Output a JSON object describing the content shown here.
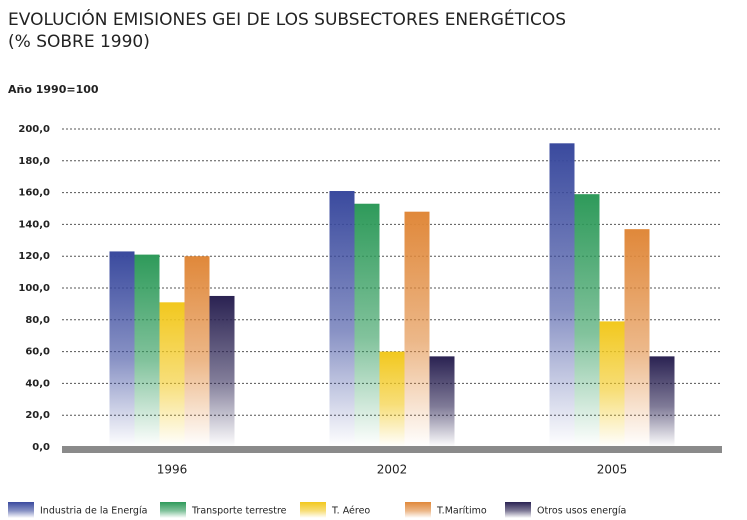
{
  "chart_data": {
    "type": "bar",
    "title": "EVOLUCIÓN EMISIONES GEI DE LOS SUBSECTORES ENERGÉTICOS",
    "subtitle": "(% SOBRE 1990)",
    "y_label": "Año 1990=100",
    "categories": [
      "1996",
      "2002",
      "2005"
    ],
    "series": [
      {
        "name": "Industria de la Energía",
        "color": "#3a4a9e",
        "values": [
          123,
          161,
          191
        ]
      },
      {
        "name": "Transporte terrestre",
        "color": "#2e9a5a",
        "values": [
          121,
          153,
          159
        ]
      },
      {
        "name": "T. Aéreo",
        "color": "#f2c81e",
        "values": [
          91,
          60,
          79
        ]
      },
      {
        "name": "T.Marítimo",
        "color": "#e0883a",
        "values": [
          120,
          148,
          137
        ]
      },
      {
        "name": "Otros usos energía",
        "color": "#2a2252",
        "values": [
          95,
          57,
          57
        ]
      }
    ],
    "ylim": [
      0,
      200
    ],
    "yticks": [
      {
        "value": 0,
        "label": "0,0"
      },
      {
        "value": 20,
        "label": "20,0"
      },
      {
        "value": 40,
        "label": "40,0"
      },
      {
        "value": 60,
        "label": "60,0"
      },
      {
        "value": 80,
        "label": "80,0"
      },
      {
        "value": 100,
        "label": "100,0"
      },
      {
        "value": 120,
        "label": "120,0"
      },
      {
        "value": 140,
        "label": "140,0"
      },
      {
        "value": 160,
        "label": "160,0"
      },
      {
        "value": 180,
        "label": "180,0"
      },
      {
        "value": 200,
        "label": "200,0"
      }
    ],
    "grid": true
  }
}
